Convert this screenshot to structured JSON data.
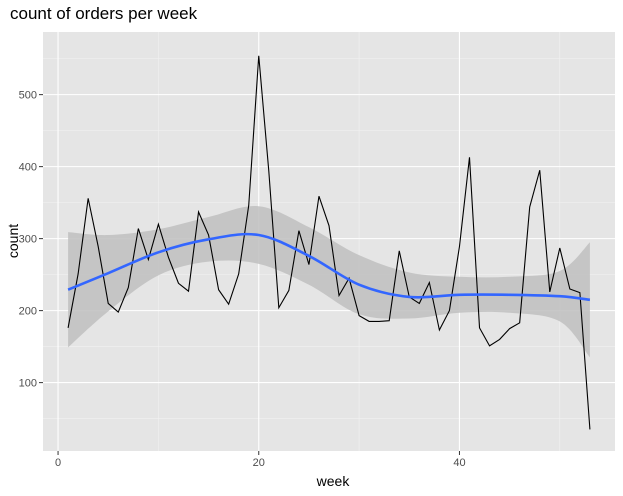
{
  "chart_data": {
    "type": "line",
    "title": "count of orders per week",
    "xlabel": "week",
    "ylabel": "count",
    "xlim": [
      -1.5,
      55.5
    ],
    "ylim": [
      5,
      587
    ],
    "xticks": [
      0,
      20,
      40
    ],
    "yticks": [
      100,
      200,
      300,
      400,
      500
    ],
    "grid": true,
    "background": "#e5e5e5",
    "colors": {
      "line": "#000000",
      "smooth": "#3366ff",
      "band": "#bfbfbf"
    },
    "series": [
      {
        "x": [
          1,
          2,
          3,
          4,
          5,
          6,
          7,
          8,
          9,
          10,
          11,
          12,
          13,
          14,
          15,
          16,
          17,
          18,
          19,
          20,
          21,
          22,
          23,
          24,
          25,
          26,
          27,
          28,
          29,
          30,
          31,
          32,
          33,
          34,
          35,
          36,
          37,
          38,
          39,
          40,
          41,
          42,
          43,
          44,
          45,
          46,
          47,
          48,
          49,
          50,
          51,
          52,
          53
        ],
        "y": [
          176,
          251,
          356,
          289,
          210,
          198,
          232,
          314,
          271,
          320,
          274,
          238,
          227,
          337,
          305,
          229,
          209,
          251,
          346,
          554,
          394,
          204,
          228,
          311,
          264,
          359,
          318,
          221,
          245,
          193,
          185,
          185,
          186,
          283,
          219,
          210,
          239,
          173,
          200,
          289,
          413,
          176,
          151,
          160,
          175,
          183,
          344,
          395,
          226,
          287,
          230,
          225,
          35
        ]
      }
    ],
    "smooth": {
      "method": "loess",
      "x": [
        1,
        5,
        10,
        15,
        20,
        25,
        30,
        35,
        40,
        45,
        50,
        53
      ],
      "y": [
        229,
        252,
        281,
        299,
        305,
        276,
        236,
        219,
        222,
        222,
        220,
        215
      ],
      "lower": [
        149,
        199,
        249,
        268,
        265,
        236,
        195,
        189,
        197,
        197,
        185,
        135
      ],
      "upper": [
        309,
        305,
        313,
        330,
        345,
        316,
        277,
        253,
        247,
        247,
        255,
        295
      ]
    }
  }
}
